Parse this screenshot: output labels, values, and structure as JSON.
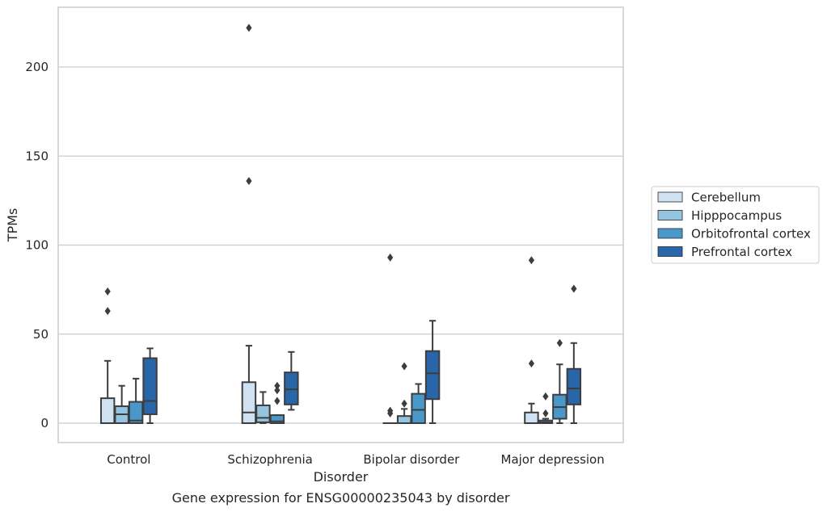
{
  "chart_data": {
    "type": "box",
    "title": "Gene expression for ENSG00000235043 by disorder",
    "xlabel": "Disorder",
    "ylabel": "TPMs",
    "ylim": [
      -11,
      234
    ],
    "yticks": [
      0,
      50,
      100,
      150,
      200
    ],
    "grid": "horizontal",
    "legend_position": "right",
    "categories": [
      "Control",
      "Schizophrenia",
      "Bipolar disorder",
      "Major depression"
    ],
    "series": [
      {
        "name": "Cerebellum",
        "color": "#d0e1f2",
        "boxes": [
          {
            "whislo": 0,
            "q1": 0,
            "med": 0,
            "q3": 14,
            "whishi": 35,
            "fliers": [
              63,
              74
            ]
          },
          {
            "whislo": 0,
            "q1": 0,
            "med": 6,
            "q3": 23,
            "whishi": 43.5,
            "fliers": [
              136,
              222
            ]
          },
          {
            "whislo": 0,
            "q1": 0,
            "med": 0,
            "q3": 0,
            "whishi": 0,
            "fliers": [
              5.5,
              7,
              93
            ]
          },
          {
            "whislo": 0,
            "q1": 0,
            "med": 0,
            "q3": 6,
            "whishi": 11,
            "fliers": [
              33.5,
              91.5
            ]
          }
        ]
      },
      {
        "name": "Hipppocampus",
        "color": "#94c4df",
        "boxes": [
          {
            "whislo": 0,
            "q1": 0,
            "med": 5,
            "q3": 9.5,
            "whishi": 21,
            "fliers": []
          },
          {
            "whislo": 0,
            "q1": 0.5,
            "med": 3,
            "q3": 10,
            "whishi": 17.5,
            "fliers": []
          },
          {
            "whislo": 0,
            "q1": 0,
            "med": 0,
            "q3": 4,
            "whishi": 8,
            "fliers": [
              11,
              32
            ]
          },
          {
            "whislo": 0,
            "q1": 0,
            "med": 0.5,
            "q3": 1.5,
            "whishi": 2.5,
            "fliers": [
              5.5,
              15
            ]
          }
        ]
      },
      {
        "name": "Orbitofrontal cortex",
        "color": "#4a98c9",
        "boxes": [
          {
            "whislo": 0,
            "q1": 0,
            "med": 1.5,
            "q3": 12,
            "whishi": 25,
            "fliers": []
          },
          {
            "whislo": 0,
            "q1": 0,
            "med": 1,
            "q3": 4.5,
            "whishi": 4.5,
            "fliers": [
              12.5,
              18.5,
              21
            ]
          },
          {
            "whislo": 0,
            "q1": 0,
            "med": 7.5,
            "q3": 16.5,
            "whishi": 22,
            "fliers": []
          },
          {
            "whislo": 0,
            "q1": 2.5,
            "med": 9,
            "q3": 16,
            "whishi": 33,
            "fliers": [
              45
            ]
          }
        ]
      },
      {
        "name": "Prefrontal cortex",
        "color": "#2866a9",
        "boxes": [
          {
            "whislo": 0,
            "q1": 5,
            "med": 12.5,
            "q3": 36.5,
            "whishi": 42,
            "fliers": []
          },
          {
            "whislo": 7.5,
            "q1": 10.5,
            "med": 19,
            "q3": 28.5,
            "whishi": 40,
            "fliers": []
          },
          {
            "whislo": 0,
            "q1": 13.5,
            "med": 28,
            "q3": 40.5,
            "whishi": 57.5,
            "fliers": []
          },
          {
            "whislo": 0,
            "q1": 10.5,
            "med": 19.5,
            "q3": 30.5,
            "whishi": 45,
            "fliers": [
              75.5
            ]
          }
        ]
      }
    ]
  }
}
